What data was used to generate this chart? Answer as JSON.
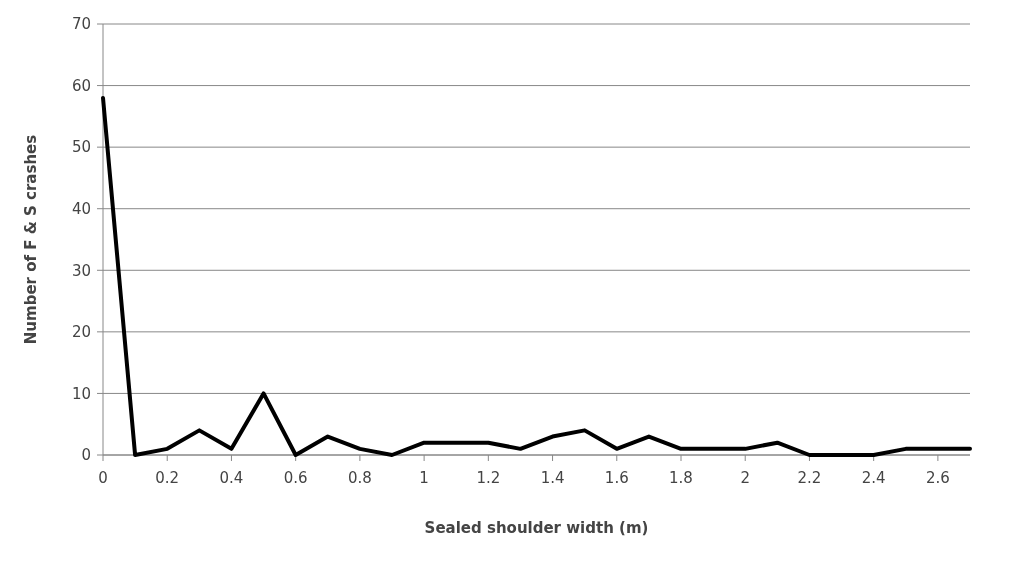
{
  "chart_data": {
    "type": "line",
    "xlabel": "Sealed shoulder width (m)",
    "ylabel": "Number of F & S crashes",
    "x": [
      0,
      0.1,
      0.2,
      0.3,
      0.4,
      0.5,
      0.6,
      0.7,
      0.8,
      0.9,
      1,
      1.1,
      1.2,
      1.3,
      1.4,
      1.5,
      1.6,
      1.7,
      1.8,
      1.9,
      2,
      2.1,
      2.2,
      2.3,
      2.4,
      2.5,
      2.6,
      2.7
    ],
    "series": [
      {
        "color": "#000000",
        "values": [
          58,
          0,
          1,
          4,
          1,
          10,
          0,
          3,
          1,
          0,
          2,
          2,
          2,
          1,
          3,
          4,
          1,
          3,
          1,
          1,
          1,
          2,
          0,
          0,
          0,
          1,
          1,
          1
        ]
      }
    ],
    "xlim": [
      0,
      2.7
    ],
    "xticks": [
      0,
      0.2,
      0.4,
      0.6,
      0.8,
      1,
      1.2,
      1.4,
      1.6,
      1.8,
      2,
      2.2,
      2.4,
      2.6
    ],
    "ylim": [
      0,
      70
    ],
    "yticks": [
      0,
      10,
      20,
      30,
      40,
      50,
      60,
      70
    ],
    "grid": "y",
    "marker": "none",
    "line_style": "solid"
  }
}
